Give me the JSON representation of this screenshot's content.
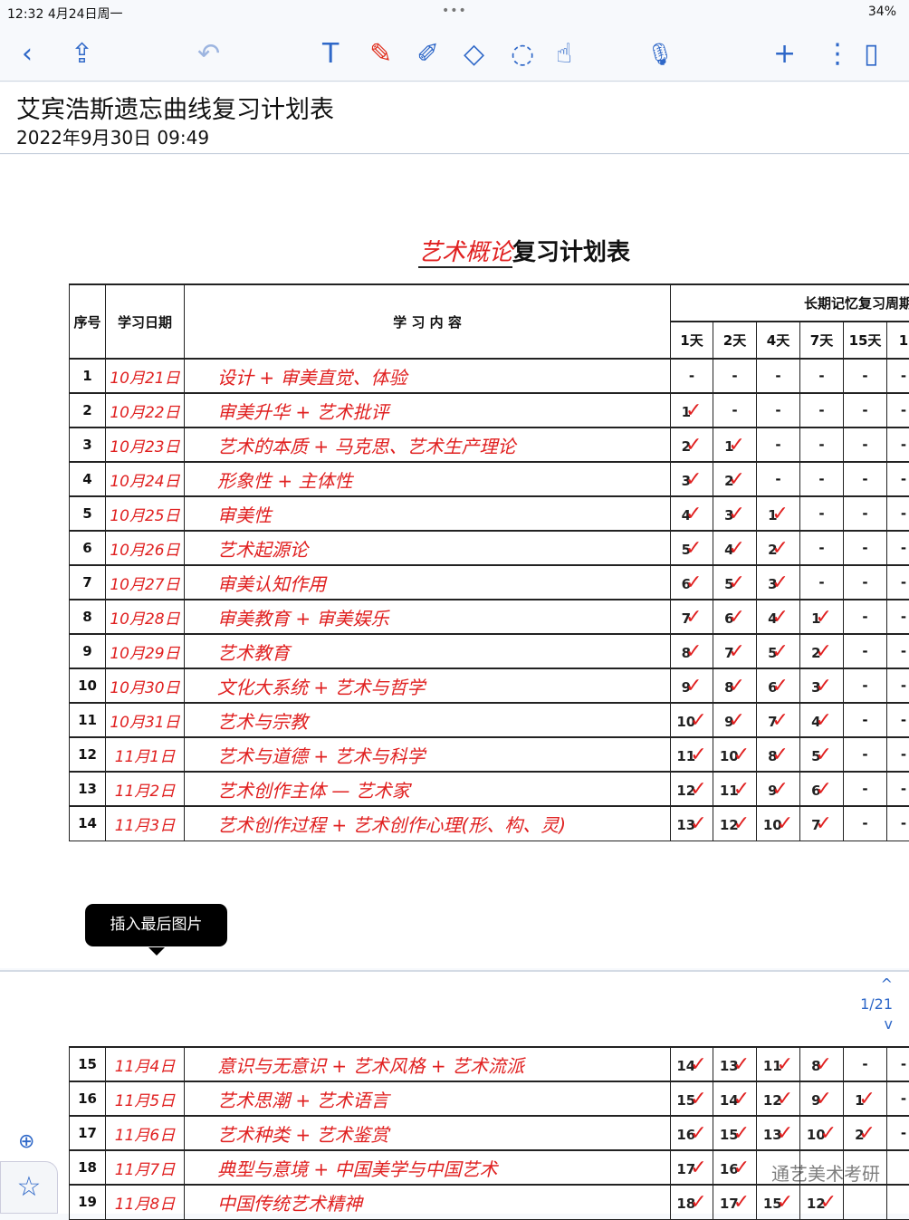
{
  "status": {
    "time": "12:32",
    "date": "4月24日周一",
    "dots": "•••",
    "right": "34%"
  },
  "toolbar": {
    "back": "‹",
    "share": "⇪",
    "undo": "↶",
    "text": "T",
    "pen": "✎",
    "pencil": "✐",
    "eraser": "◇",
    "lasso": "◌",
    "hand": "☝",
    "mic": "🎙",
    "add": "+",
    "more": "⋮",
    "pages": "▯"
  },
  "note": {
    "title": "艾宾浩斯遗忘曲线复习计划表",
    "date": "2022年9月30日 09:49"
  },
  "page_title": {
    "subject": "艺术概论",
    "suffix": "复习计划表"
  },
  "table": {
    "headers": {
      "no": "序号",
      "date": "学习日期",
      "content": "学 习 内 容",
      "period": "长期记忆复习周期",
      "days": [
        "1天",
        "2天",
        "4天",
        "7天",
        "15天",
        "1"
      ]
    },
    "rows": [
      {
        "no": "1",
        "date": "10月21日",
        "content": "设计 + 审美直觉、体验",
        "rv": [
          "-",
          "-",
          "-",
          "-",
          "-",
          "-"
        ]
      },
      {
        "no": "2",
        "date": "10月22日",
        "content": "审美升华 + 艺术批评",
        "rv": [
          "1",
          "-",
          "-",
          "-",
          "-",
          "-"
        ]
      },
      {
        "no": "3",
        "date": "10月23日",
        "content": "艺术的本质 + 马克思、艺术生产理论",
        "rv": [
          "2",
          "1",
          "-",
          "-",
          "-",
          "-"
        ]
      },
      {
        "no": "4",
        "date": "10月24日",
        "content": "形象性 + 主体性",
        "rv": [
          "3",
          "2",
          "-",
          "-",
          "-",
          "-"
        ]
      },
      {
        "no": "5",
        "date": "10月25日",
        "content": "审美性",
        "rv": [
          "4",
          "3",
          "1",
          "-",
          "-",
          "-"
        ]
      },
      {
        "no": "6",
        "date": "10月26日",
        "content": "艺术起源论",
        "rv": [
          "5",
          "4",
          "2",
          "-",
          "-",
          "-"
        ]
      },
      {
        "no": "7",
        "date": "10月27日",
        "content": "审美认知作用",
        "rv": [
          "6",
          "5",
          "3",
          "-",
          "-",
          "-"
        ]
      },
      {
        "no": "8",
        "date": "10月28日",
        "content": "审美教育 + 审美娱乐",
        "rv": [
          "7",
          "6",
          "4",
          "1",
          "-",
          "-"
        ]
      },
      {
        "no": "9",
        "date": "10月29日",
        "content": "艺术教育",
        "rv": [
          "8",
          "7",
          "5",
          "2",
          "-",
          "-"
        ]
      },
      {
        "no": "10",
        "date": "10月30日",
        "content": "文化大系统 + 艺术与哲学",
        "rv": [
          "9",
          "8",
          "6",
          "3",
          "-",
          "-"
        ]
      },
      {
        "no": "11",
        "date": "10月31日",
        "content": "艺术与宗教",
        "rv": [
          "10",
          "9",
          "7",
          "4",
          "-",
          "-"
        ]
      },
      {
        "no": "12",
        "date": "11月1日",
        "content": "艺术与道德 + 艺术与科学",
        "rv": [
          "11",
          "10",
          "8",
          "5",
          "-",
          "-"
        ]
      },
      {
        "no": "13",
        "date": "11月2日",
        "content": "艺术创作主体 — 艺术家",
        "rv": [
          "12",
          "11",
          "9",
          "6",
          "-",
          "-"
        ]
      },
      {
        "no": "14",
        "date": "11月3日",
        "content": "艺术创作过程 + 艺术创作心理(形、构、灵)",
        "rv": [
          "13",
          "12",
          "10",
          "7",
          "-",
          "-"
        ]
      }
    ],
    "rows2": [
      {
        "no": "15",
        "date": "11月4日",
        "content": "意识与无意识 + 艺术风格 + 艺术流派",
        "rv": [
          "14",
          "13",
          "11",
          "8",
          "-",
          "-"
        ]
      },
      {
        "no": "16",
        "date": "11月5日",
        "content": "艺术思潮 + 艺术语言",
        "rv": [
          "15",
          "14",
          "12",
          "9",
          "1",
          "-"
        ]
      },
      {
        "no": "17",
        "date": "11月6日",
        "content": "艺术种类 + 艺术鉴赏",
        "rv": [
          "16",
          "15",
          "13",
          "10",
          "2",
          "-"
        ]
      },
      {
        "no": "18",
        "date": "11月7日",
        "content": "典型与意境 + 中国美学与中国艺术",
        "rv": [
          "17",
          "16",
          "",
          "",
          "",
          ""
        ]
      },
      {
        "no": "19",
        "date": "11月8日",
        "content": "中国传统艺术精神",
        "rv": [
          "18",
          "17",
          "15",
          "12",
          "",
          ""
        ]
      }
    ]
  },
  "tooltip": "插入最后图片",
  "scroll": {
    "up": "^",
    "page": "1",
    "sep": "/",
    "total": "21",
    "down": "v"
  },
  "watermark": "通艺美术考研",
  "colors": {
    "accent": "#2f68c8",
    "ink": "#e02020"
  }
}
